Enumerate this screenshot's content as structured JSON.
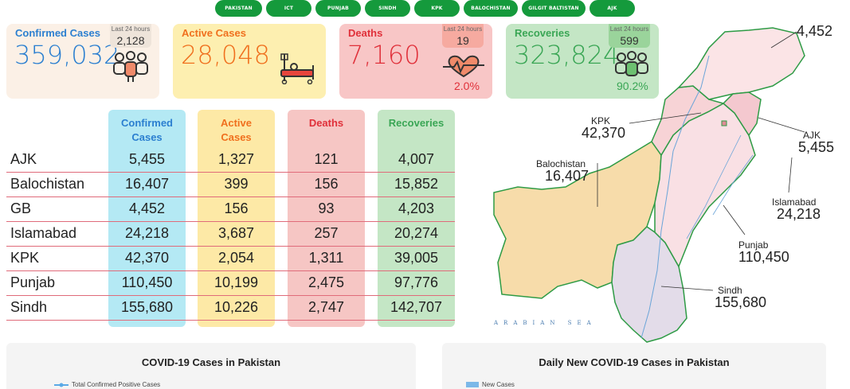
{
  "nav": {
    "items": [
      "PAKISTAN",
      "ICT",
      "PUNJAB",
      "SINDH",
      "KPK",
      "BALOCHISTAN",
      "GILGIT BALTISTAN",
      "AJK"
    ]
  },
  "cards": {
    "confirmed": {
      "title": "Confirmed Cases",
      "value": "359,032",
      "last24_caption": "Last 24 hours",
      "last24": "2,128",
      "color": "#2b7fd0"
    },
    "active": {
      "title": "Active Cases",
      "value": "28,048",
      "color": "#f0701e"
    },
    "deaths": {
      "title": "Deaths",
      "value": "7,160",
      "last24_caption": "Last 24 hours",
      "last24": "19",
      "pct": "2.0%",
      "color": "#e0303a"
    },
    "recoveries": {
      "title": "Recoveries",
      "value": "323,824",
      "last24_caption": "Last 24 hours",
      "last24": "599",
      "pct": "90.2%",
      "color": "#3aa655"
    }
  },
  "table": {
    "headers": {
      "confirmed": [
        "Confirmed",
        "Cases"
      ],
      "active": [
        "Active",
        "Cases"
      ],
      "deaths": "Deaths",
      "recoveries": "Recoveries"
    },
    "rows": [
      {
        "province": "AJK",
        "confirmed": "5,455",
        "active": "1,327",
        "deaths": "121",
        "recoveries": "4,007"
      },
      {
        "province": "Balochistan",
        "confirmed": "16,407",
        "active": "399",
        "deaths": "156",
        "recoveries": "15,852"
      },
      {
        "province": "GB",
        "confirmed": "4,452",
        "active": "156",
        "deaths": "93",
        "recoveries": "4,203"
      },
      {
        "province": "Islamabad",
        "confirmed": "24,218",
        "active": "3,687",
        "deaths": "257",
        "recoveries": "20,274"
      },
      {
        "province": "KPK",
        "confirmed": "42,370",
        "active": "2,054",
        "deaths": "1,311",
        "recoveries": "39,005"
      },
      {
        "province": "Punjab",
        "confirmed": "110,450",
        "active": "10,199",
        "deaths": "2,475",
        "recoveries": "97,776"
      },
      {
        "province": "Sindh",
        "confirmed": "155,680",
        "active": "10,226",
        "deaths": "2,747",
        "recoveries": "142,707"
      }
    ]
  },
  "map": {
    "labels": {
      "gb": {
        "value": "4,452"
      },
      "kpk": {
        "name": "KPK",
        "value": "42,370"
      },
      "ajk": {
        "name": "AJK",
        "value": "5,455"
      },
      "balochistan": {
        "name": "Balochistan",
        "value": "16,407"
      },
      "islamabad": {
        "name": "Islamabad",
        "value": "24,218"
      },
      "punjab": {
        "name": "Punjab",
        "value": "110,450"
      },
      "sindh": {
        "name": "Sindh",
        "value": "155,680"
      }
    },
    "sea_label": "ARABIAN SEA"
  },
  "charts": {
    "cumulative": {
      "title": "COVID-19 Cases in Pakistan",
      "legend": "Total Confirmed Positive Cases"
    },
    "daily": {
      "title": "Daily New COVID-19 Cases in Pakistan",
      "legend": "New Cases"
    }
  }
}
